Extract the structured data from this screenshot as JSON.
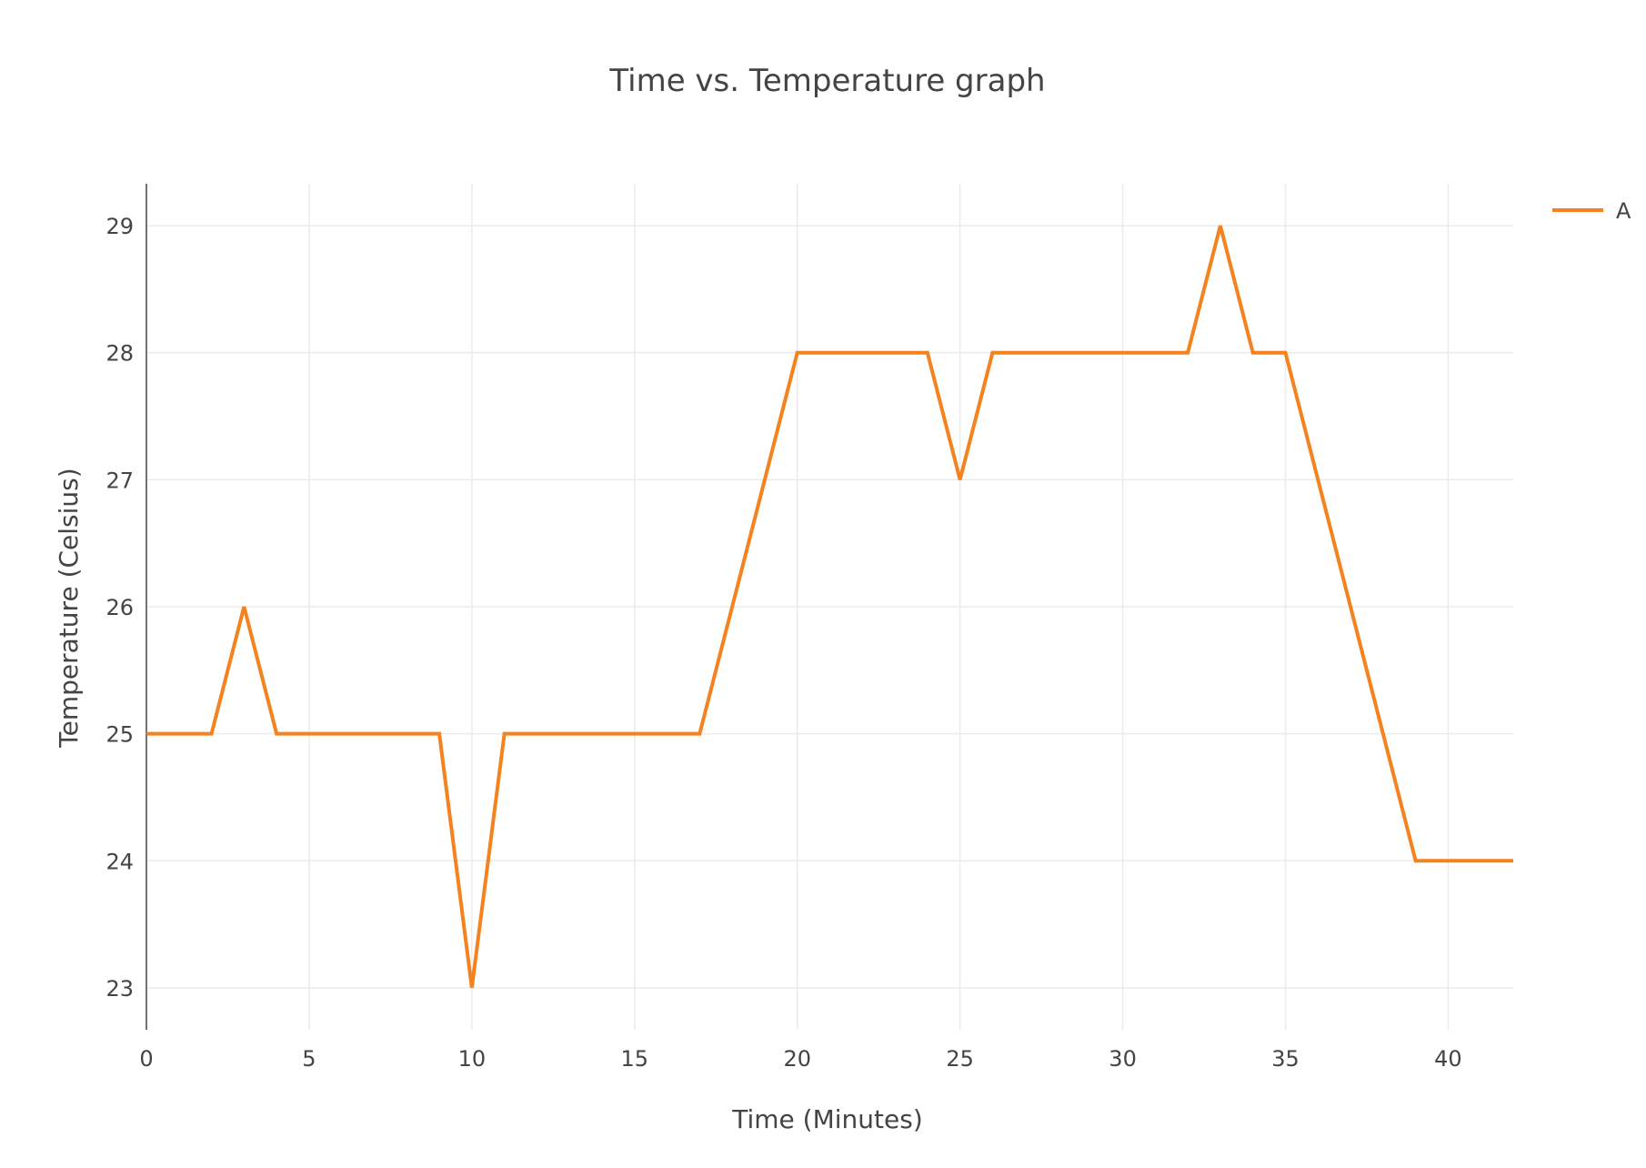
{
  "chart_data": {
    "type": "line",
    "title": "Time vs. Temperature graph",
    "xlabel": "Time (Minutes)",
    "ylabel": "Temperature (Celsius)",
    "xlim": [
      0,
      42
    ],
    "ylim": [
      22.67,
      29.33
    ],
    "grid": true,
    "legend_position": "top-right",
    "x_ticks": [
      0,
      5,
      10,
      15,
      20,
      25,
      30,
      35,
      40
    ],
    "y_ticks": [
      23,
      24,
      25,
      26,
      27,
      28,
      29
    ],
    "series": [
      {
        "name": "A",
        "color": "#f5821f",
        "x": [
          0,
          1,
          2,
          3,
          4,
          5,
          6,
          7,
          8,
          9,
          10,
          11,
          12,
          13,
          14,
          15,
          16,
          17,
          18,
          19,
          20,
          21,
          22,
          23,
          24,
          25,
          26,
          27,
          28,
          29,
          30,
          31,
          32,
          33,
          34,
          35,
          36,
          37,
          38,
          39,
          40,
          41,
          42
        ],
        "y": [
          25,
          25,
          25,
          26,
          25,
          25,
          25,
          25,
          25,
          25,
          23,
          25,
          25,
          25,
          25,
          25,
          25,
          25,
          26,
          27,
          28,
          28,
          28,
          28,
          28,
          27,
          28,
          28,
          28,
          28,
          28,
          28,
          28,
          29,
          28,
          28,
          27,
          26,
          25,
          24,
          24,
          24,
          24
        ]
      }
    ]
  }
}
